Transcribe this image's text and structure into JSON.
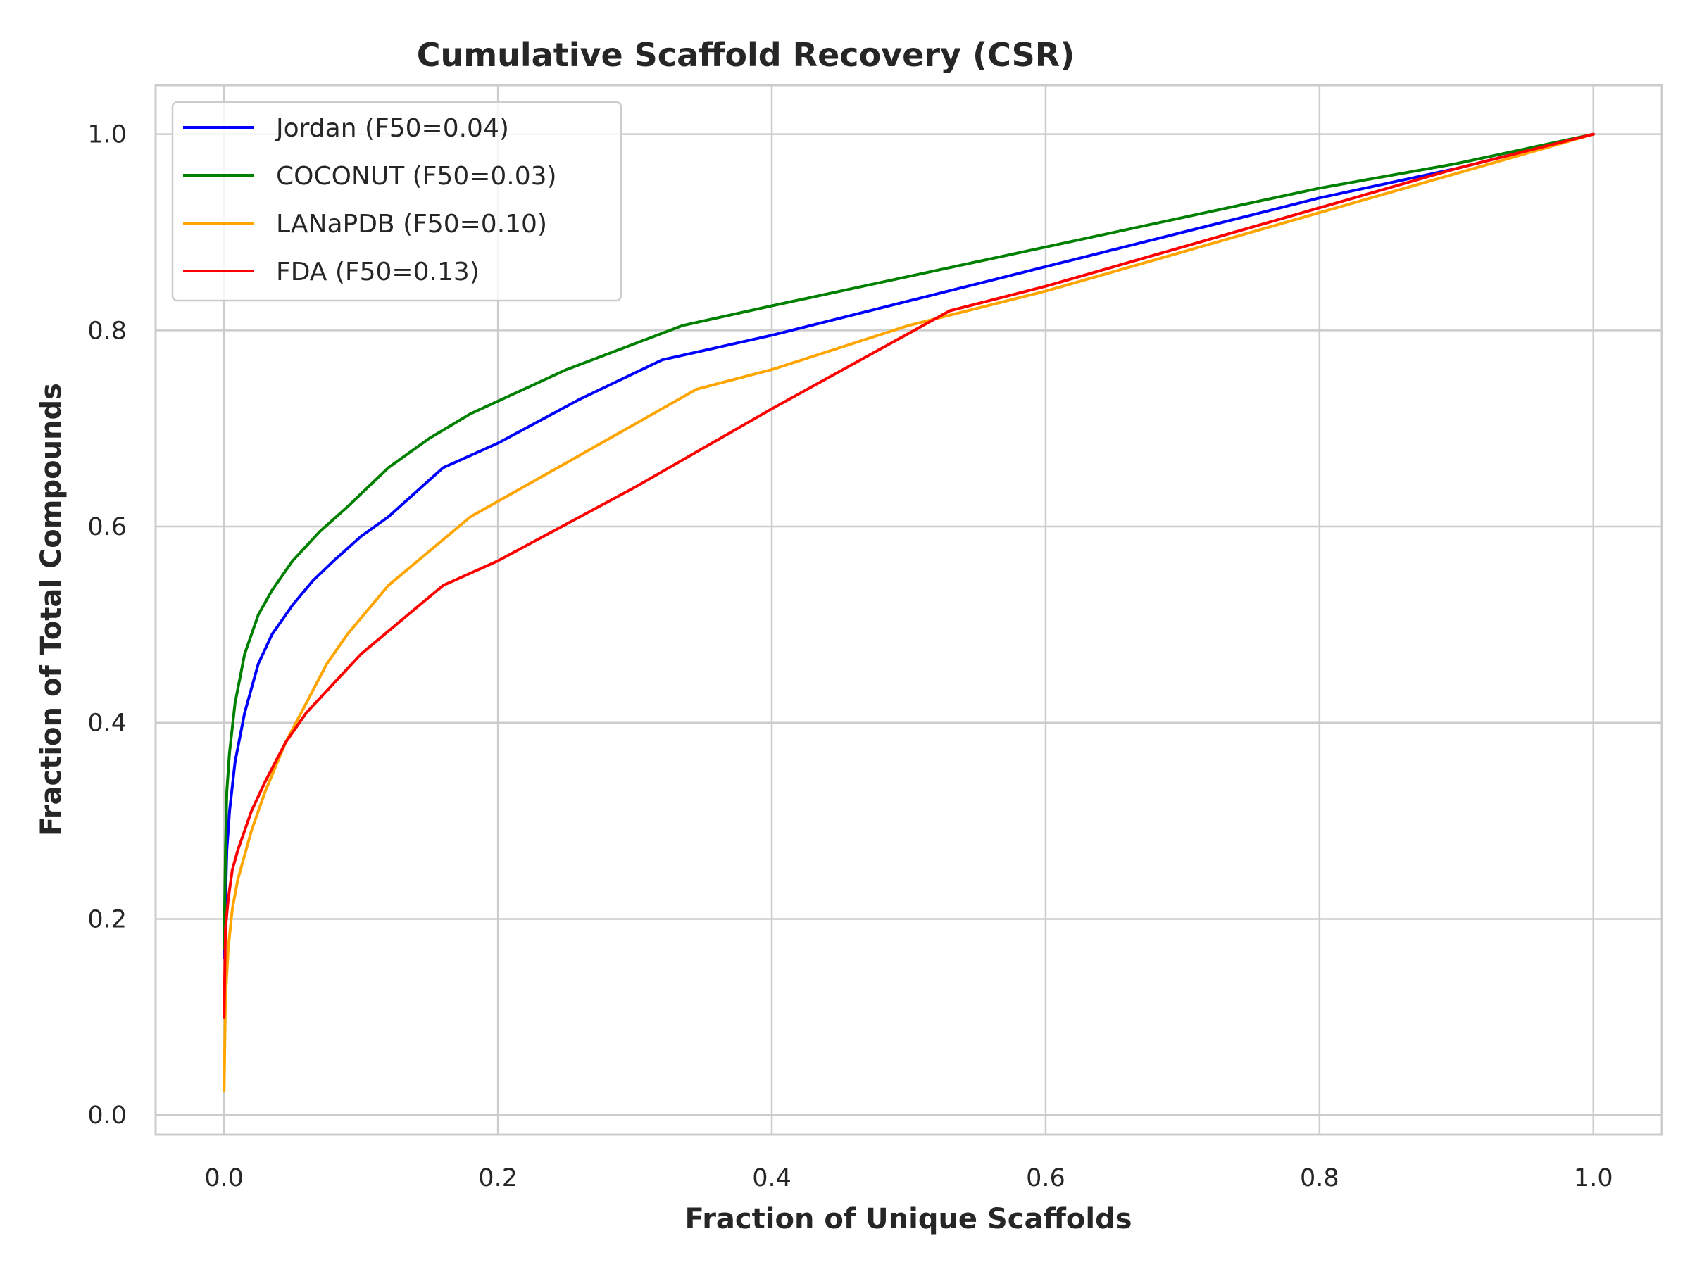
{
  "chart_data": {
    "type": "line",
    "title": "Cumulative Scaffold Recovery (CSR)",
    "xlabel": "Fraction of Unique Scaffolds",
    "ylabel": "Fraction of Total Compounds",
    "xlim": [
      -0.05,
      1.05
    ],
    "ylim": [
      -0.02,
      1.05
    ],
    "xticks": [
      "0.0",
      "0.2",
      "0.4",
      "0.6",
      "0.8",
      "1.0"
    ],
    "yticks": [
      "0.0",
      "0.2",
      "0.4",
      "0.6",
      "0.8",
      "1.0"
    ],
    "grid": true,
    "legend_position": "top-left",
    "series": [
      {
        "name": "Jordan (F50=0.04)",
        "color": "#0000ff",
        "x": [
          0.0,
          0.001,
          0.002,
          0.004,
          0.008,
          0.015,
          0.025,
          0.035,
          0.05,
          0.065,
          0.08,
          0.1,
          0.12,
          0.16,
          0.2,
          0.26,
          0.32,
          0.4,
          0.5,
          0.6,
          0.7,
          0.8,
          0.9,
          1.0
        ],
        "y": [
          0.16,
          0.22,
          0.27,
          0.31,
          0.36,
          0.41,
          0.46,
          0.49,
          0.52,
          0.545,
          0.565,
          0.59,
          0.61,
          0.66,
          0.685,
          0.73,
          0.77,
          0.795,
          0.83,
          0.865,
          0.9,
          0.935,
          0.965,
          1.0
        ]
      },
      {
        "name": "COCONUT (F50=0.03)",
        "color": "#008000",
        "x": [
          0.0,
          0.001,
          0.002,
          0.004,
          0.008,
          0.015,
          0.025,
          0.035,
          0.05,
          0.07,
          0.09,
          0.12,
          0.15,
          0.18,
          0.25,
          0.335,
          0.4,
          0.5,
          0.6,
          0.7,
          0.8,
          0.9,
          1.0
        ],
        "y": [
          0.17,
          0.27,
          0.33,
          0.37,
          0.42,
          0.47,
          0.51,
          0.535,
          0.565,
          0.595,
          0.62,
          0.66,
          0.69,
          0.715,
          0.76,
          0.805,
          0.825,
          0.855,
          0.885,
          0.915,
          0.945,
          0.97,
          1.0
        ]
      },
      {
        "name": "LANaPDB (F50=0.10)",
        "color": "#ffa500",
        "x": [
          0.0,
          0.001,
          0.003,
          0.006,
          0.01,
          0.02,
          0.03,
          0.045,
          0.06,
          0.075,
          0.09,
          0.12,
          0.15,
          0.18,
          0.25,
          0.345,
          0.4,
          0.5,
          0.6,
          0.7,
          0.8,
          0.9,
          1.0
        ],
        "y": [
          0.025,
          0.12,
          0.17,
          0.21,
          0.24,
          0.29,
          0.33,
          0.38,
          0.42,
          0.46,
          0.49,
          0.54,
          0.575,
          0.61,
          0.665,
          0.74,
          0.76,
          0.805,
          0.84,
          0.88,
          0.92,
          0.96,
          1.0
        ]
      },
      {
        "name": "FDA (F50=0.13)",
        "color": "#ff0000",
        "x": [
          0.0,
          0.001,
          0.003,
          0.006,
          0.01,
          0.02,
          0.03,
          0.045,
          0.06,
          0.08,
          0.1,
          0.13,
          0.16,
          0.2,
          0.3,
          0.4,
          0.53,
          0.6,
          0.7,
          0.8,
          0.9,
          1.0
        ],
        "y": [
          0.1,
          0.19,
          0.22,
          0.25,
          0.27,
          0.31,
          0.34,
          0.38,
          0.41,
          0.44,
          0.47,
          0.505,
          0.54,
          0.565,
          0.64,
          0.72,
          0.82,
          0.845,
          0.885,
          0.925,
          0.965,
          1.0
        ]
      }
    ]
  }
}
